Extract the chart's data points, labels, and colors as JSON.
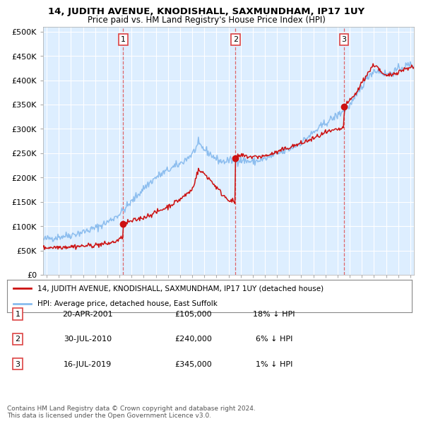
{
  "title": "14, JUDITH AVENUE, KNODISHALL, SAXMUNDHAM, IP17 1UY",
  "subtitle": "Price paid vs. HM Land Registry's House Price Index (HPI)",
  "yticks": [
    0,
    50000,
    100000,
    150000,
    200000,
    250000,
    300000,
    350000,
    400000,
    450000,
    500000
  ],
  "ytick_labels": [
    "£0",
    "£50K",
    "£100K",
    "£150K",
    "£200K",
    "£250K",
    "£300K",
    "£350K",
    "£400K",
    "£450K",
    "£500K"
  ],
  "xlim_start": 1994.7,
  "xlim_end": 2025.3,
  "ylim": [
    0,
    510000
  ],
  "background_color": "#ddeeff",
  "grid_color": "#ffffff",
  "sale_dates": [
    2001.3,
    2010.58,
    2019.54
  ],
  "sale_prices": [
    105000,
    240000,
    345000
  ],
  "sale_labels": [
    "1",
    "2",
    "3"
  ],
  "sale_info": [
    {
      "num": "1",
      "date": "20-APR-2001",
      "price": "£105,000",
      "pct": "18% ↓ HPI"
    },
    {
      "num": "2",
      "date": "30-JUL-2010",
      "price": "£240,000",
      "pct": "6% ↓ HPI"
    },
    {
      "num": "3",
      "date": "16-JUL-2019",
      "price": "£345,000",
      "pct": "1% ↓ HPI"
    }
  ],
  "legend_line1": "14, JUDITH AVENUE, KNODISHALL, SAXMUNDHAM, IP17 1UY (detached house)",
  "legend_line2": "HPI: Average price, detached house, East Suffolk",
  "footer": "Contains HM Land Registry data © Crown copyright and database right 2024.\nThis data is licensed under the Open Government Licence v3.0.",
  "hpi_color": "#88bbee",
  "sale_color": "#cc1111",
  "dashed_color": "#dd4444"
}
